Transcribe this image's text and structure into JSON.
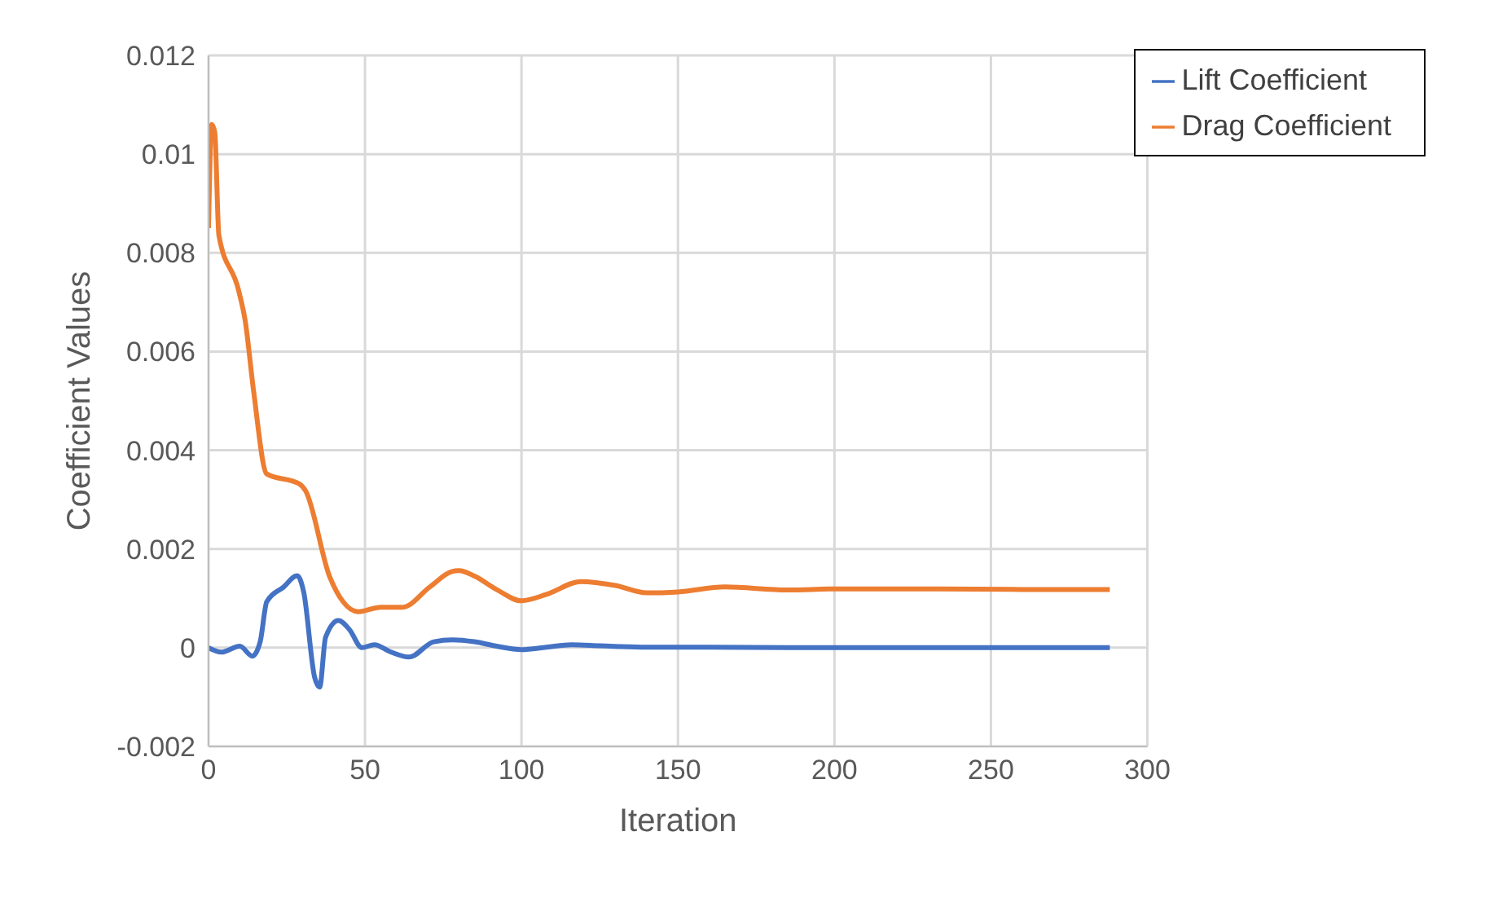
{
  "chart_data": {
    "type": "line",
    "xlabel": "Iteration",
    "ylabel": "Coefficient Values",
    "xlim": [
      0,
      300
    ],
    "xticks": [
      0,
      50,
      100,
      150,
      200,
      250,
      300
    ],
    "ylim": [
      -0.002,
      0.012
    ],
    "yticks": [
      -0.002,
      0,
      0.002,
      0.004,
      0.006,
      0.008,
      0.01,
      0.012
    ],
    "grid": true,
    "legend": "top right",
    "marker": "none",
    "line_style": "solid",
    "series": [
      {
        "name": "Lift Coefficient",
        "color": "#4472c4",
        "x": [
          0,
          4,
          10,
          14,
          16.5,
          18.6,
          24,
          28.3,
          30.4,
          33.9,
          35.5,
          37.4,
          41.5,
          45,
          49,
          53,
          58,
          64,
          72,
          78,
          85,
          92,
          100,
          108,
          116,
          125,
          140,
          160,
          200,
          250,
          288
        ],
        "values": [
          0,
          -9e-05,
          3e-05,
          -0.00017,
          0.00012,
          0.00093,
          0.00123,
          0.00146,
          0.00113,
          -0.0006,
          -0.0008,
          0.00021,
          0.00055,
          0.00037,
          0,
          6e-05,
          -8e-05,
          -0.00019,
          0.00012,
          0.00016,
          0.00012,
          3e-05,
          -4e-05,
          1e-05,
          6e-05,
          4e-05,
          1e-05,
          1e-05,
          0,
          0,
          0
        ]
      },
      {
        "name": "Drag Coefficient",
        "color": "#ed7d31",
        "x": [
          0,
          1,
          2,
          3.3,
          9.6,
          11.7,
          14.4,
          18.6,
          29,
          31,
          38.7,
          43,
          47.8,
          55,
          62,
          70.7,
          77.6,
          80,
          85,
          92,
          100,
          108,
          119,
          130,
          140,
          150,
          165,
          185,
          200,
          230,
          260,
          288
        ],
        "values": [
          0.0085,
          0.0106,
          0.01044,
          0.00836,
          0.00724,
          0.00663,
          0.0052,
          0.00352,
          0.00332,
          0.00318,
          0.00144,
          0.00093,
          0.00073,
          0.00082,
          0.00082,
          0.00123,
          0.00154,
          0.00156,
          0.00145,
          0.00118,
          0.00095,
          0.00108,
          0.00134,
          0.00126,
          0.00111,
          0.00113,
          0.00123,
          0.00117,
          0.00119,
          0.00119,
          0.00118,
          0.00118
        ]
      }
    ]
  }
}
